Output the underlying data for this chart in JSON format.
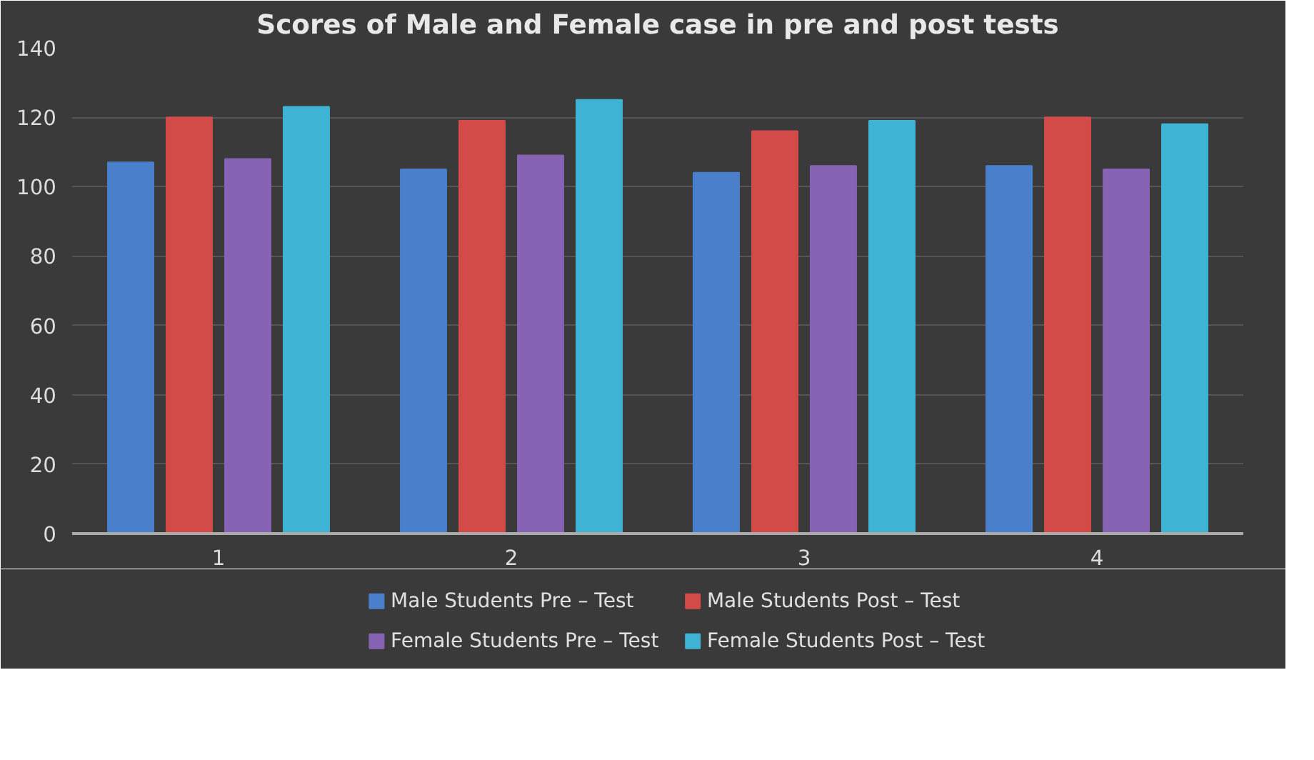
{
  "chart_data": {
    "type": "bar",
    "title": "Scores of Male and Female case in pre and post tests",
    "categories": [
      "1",
      "2",
      "3",
      "4"
    ],
    "series": [
      {
        "name": "Male Students Pre – Test",
        "color": "#4a7fcb",
        "values": [
          107,
          105,
          104,
          106
        ]
      },
      {
        "name": "Male Students Post – Test",
        "color": "#d24b48",
        "values": [
          120,
          119,
          116,
          120
        ]
      },
      {
        "name": "Female Students Pre – Test",
        "color": "#8663b3",
        "values": [
          108,
          109,
          106,
          105
        ]
      },
      {
        "name": "Female Students Post – Test",
        "color": "#3fb3d3",
        "values": [
          123,
          125,
          119,
          118
        ]
      }
    ],
    "ylim": [
      0,
      140
    ],
    "yticks": [
      0,
      20,
      40,
      60,
      80,
      100,
      120,
      140
    ],
    "grid": "y",
    "legend": "bottom"
  }
}
